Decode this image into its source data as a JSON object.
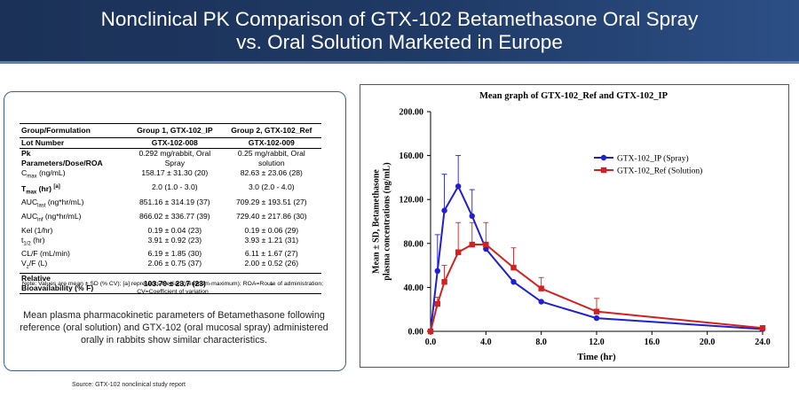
{
  "header": {
    "title_line1": "Nonclinical PK Comparison of GTX-102 Betamethasone Oral Spray",
    "title_line2": "vs. Oral Solution Marketed in Europe",
    "background": "#1f3a66"
  },
  "table": {
    "header": [
      "Group/Formulation",
      "Group 1, GTX-102_IP",
      "Group 2, GTX-102_Ref"
    ],
    "lot": [
      "Lot Number",
      "GTX-102-008",
      "GTX-102-009"
    ],
    "dose_label_line1": "Pk",
    "dose_label_line2": "Parameters/Dose/ROA",
    "dose_g1_line1": "0.292 mg/rabbit, Oral",
    "dose_g1_line2": "Spray",
    "dose_g2_line1": "0.25 mg/rabbit, Oral",
    "dose_g2_line2": "solution",
    "rows": [
      {
        "base": "C",
        "sub": "max",
        "sup": "",
        "rest": " (ng/mL)",
        "bold": false,
        "g1": "158.17 ± 31.30 (20)",
        "g2": "82.63 ± 23.06 (28)"
      },
      {
        "base": "T",
        "sub": "max",
        "sup": "",
        "rest": " (hr) ",
        "sup2": "[a]",
        "bold": true,
        "g1": "2.0 (1.0 - 3.0)",
        "g2": "3.0 (2.0 - 4.0)"
      },
      {
        "base": "AUC",
        "sub": "last",
        "sup": "",
        "rest": " (ng*hr/mL)",
        "bold": false,
        "g1": "851.16 ± 314.19 (37)",
        "g2": "709.29 ± 193.51 (27)"
      },
      {
        "base": "AUC",
        "sub": "inf",
        "sup": "",
        "rest": " (ng*hr/mL)",
        "bold": false,
        "g1": "866.02 ± 336.77 (39)",
        "g2": "729.40 ± 217.86 (30)"
      },
      {
        "base": "Kel (1/hr)",
        "sub": "",
        "sup": "",
        "rest": "",
        "bold": false,
        "g1": "0.19 ± 0.04 (23)",
        "g2": "0.19 ± 0.06 (29)"
      },
      {
        "base": "t",
        "sub": "1/2",
        "sup": "",
        "rest": " (hr)",
        "bold": false,
        "g1": "3.91 ± 0.92 (23)",
        "g2": "3.93 ± 1.21 (31)"
      },
      {
        "base": "CL/F (mL/min)",
        "sub": "",
        "sup": "",
        "rest": "",
        "bold": false,
        "g1": "6.19 ± 1.85 (30)",
        "g2": "6.11 ± 1.67 (27)"
      },
      {
        "base": "V",
        "sub": "z",
        "sup": "",
        "rest": "/F (L)",
        "bold": false,
        "g1": "2.06 ± 0.75 (37)",
        "g2": "2.00 ± 0.52 (26)"
      }
    ],
    "bioavailability_label_line1": "Relative",
    "bioavailability_label_line2": "Bioavailability (% F)",
    "bioavailability_g1": "103.70 ± 23.7 (23)",
    "bioavailability_g2": "-"
  },
  "note": "Note: Values are mean ± SD (% CV); [a] represents Median (minimum-maximum); ROA=Route of administration; CV=Coefficient of variation",
  "caption": "Mean plasma pharmacokinetic parameters of Betamethasone following reference (oral solution) and GTX-102 (oral mucosal spray) administered orally in rabbits show similar characteristics.",
  "source": "Source: GTX-102 nonclinical study report",
  "chart_data": {
    "type": "line",
    "title": "Mean graph of GTX-102_Ref and GTX-102_IP",
    "xlabel": "Time (hr)",
    "ylabel_line1": "Mean ± SD, Betamethasone",
    "ylabel_line2": "plasma concentrations (ng/mL)",
    "xlim": [
      0,
      24
    ],
    "ylim": [
      0,
      200
    ],
    "xticks": [
      0,
      4,
      8,
      12,
      16,
      20,
      24
    ],
    "xtick_labels": [
      "0.0",
      "4.0",
      "8.0",
      "12.0",
      "16.0",
      "20.0",
      "24.0"
    ],
    "yticks": [
      0,
      40,
      80,
      120,
      160,
      200
    ],
    "ytick_labels": [
      "0.00",
      "40.00",
      "80.00",
      "120.00",
      "160.00",
      "200.00"
    ],
    "legend_position": "right",
    "series": [
      {
        "name": "GTX-102_IP (Spray)",
        "color": "#1f1fd6",
        "marker": "circle",
        "x": [
          0,
          0.5,
          1,
          2,
          3,
          4,
          6,
          8,
          12,
          24
        ],
        "y": [
          0,
          55,
          110,
          132,
          105,
          75,
          45,
          27,
          12,
          2
        ],
        "sd": [
          0,
          33,
          33,
          28,
          24,
          0,
          0,
          0,
          0,
          0
        ]
      },
      {
        "name": "GTX-102_Ref (Solution)",
        "color": "#d42020",
        "marker": "square",
        "x": [
          0,
          0.5,
          1,
          2,
          3,
          4,
          6,
          8,
          12,
          24
        ],
        "y": [
          0,
          25,
          45,
          72,
          79,
          79,
          58,
          39,
          18,
          3
        ],
        "sd": [
          0,
          6,
          15,
          27,
          20,
          20,
          18,
          10,
          12,
          2
        ]
      }
    ]
  }
}
